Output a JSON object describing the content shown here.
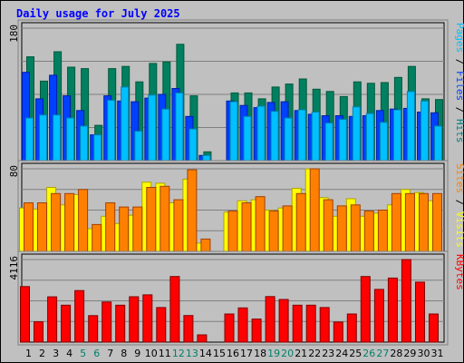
{
  "chart_data": [
    {
      "type": "bar",
      "panel": "top",
      "title": "Daily usage for July 2025",
      "ymax_label": "180",
      "ylim": [
        0,
        180
      ],
      "legend": [
        {
          "text": "Pages",
          "color": "#00c0ff"
        },
        {
          "text": " / ",
          "color": "#000000"
        },
        {
          "text": "Files",
          "color": "#0040ff"
        },
        {
          "text": " / ",
          "color": "#000000"
        },
        {
          "text": "Hits",
          "color": "#008080"
        }
      ],
      "categories": [
        "1",
        "2",
        "3",
        "4",
        "5",
        "6",
        "7",
        "8",
        "9",
        "10",
        "11",
        "12",
        "13",
        "14",
        "15",
        "16",
        "17",
        "18",
        "19",
        "20",
        "21",
        "22",
        "23",
        "24",
        "25",
        "26",
        "27",
        "28",
        "29",
        "30",
        "31"
      ],
      "series": [
        {
          "name": "Hits",
          "color": "#008060",
          "values": [
            141,
            108,
            148,
            127,
            125,
            48,
            125,
            128,
            107,
            132,
            134,
            158,
            88,
            12,
            0,
            92,
            92,
            84,
            100,
            104,
            111,
            97,
            94,
            87,
            107,
            105,
            106,
            113,
            128,
            84,
            83
          ]
        },
        {
          "name": "Files",
          "color": "#0040ff",
          "values": [
            120,
            84,
            116,
            88,
            68,
            35,
            88,
            81,
            80,
            85,
            90,
            98,
            60,
            7,
            0,
            81,
            75,
            72,
            79,
            80,
            68,
            63,
            61,
            61,
            60,
            61,
            68,
            70,
            71,
            66,
            65
          ]
        },
        {
          "name": "Pages",
          "color": "#00c0ff",
          "values": [
            58,
            62,
            62,
            58,
            47,
            35,
            82,
            100,
            40,
            89,
            70,
            92,
            43,
            7,
            0,
            80,
            60,
            74,
            67,
            58,
            69,
            66,
            51,
            56,
            73,
            64,
            52,
            69,
            94,
            81,
            47
          ]
        }
      ]
    },
    {
      "type": "bar",
      "panel": "middle",
      "ymax_label": "80",
      "ylim": [
        0,
        80
      ],
      "legend": [
        {
          "text": "Sites",
          "color": "#ff8000"
        },
        {
          "text": " / ",
          "color": "#000000"
        },
        {
          "text": "Visits",
          "color": "#ffff00"
        }
      ],
      "categories": [
        "1",
        "2",
        "3",
        "4",
        "5",
        "6",
        "7",
        "8",
        "9",
        "10",
        "11",
        "12",
        "13",
        "14",
        "15",
        "16",
        "17",
        "18",
        "19",
        "20",
        "21",
        "22",
        "23",
        "24",
        "25",
        "26",
        "27",
        "28",
        "29",
        "30",
        "31"
      ],
      "series": [
        {
          "name": "Visits",
          "color": "#ffff00",
          "values": [
            42,
            41,
            62,
            45,
            55,
            22,
            34,
            27,
            35,
            67,
            66,
            47,
            70,
            8,
            0,
            38,
            49,
            50,
            40,
            42,
            61,
            80,
            52,
            34,
            51,
            34,
            37,
            45,
            60,
            57,
            49
          ]
        },
        {
          "name": "Sites",
          "color": "#ff8000",
          "values": [
            47,
            47,
            56,
            56,
            60,
            26,
            47,
            43,
            43,
            62,
            63,
            50,
            79,
            12,
            0,
            39,
            47,
            53,
            39,
            44,
            56,
            80,
            50,
            44,
            45,
            39,
            40,
            56,
            56,
            56,
            56
          ]
        }
      ]
    },
    {
      "type": "bar",
      "panel": "bottom",
      "ymax_label": "4116",
      "ylim": [
        0,
        4116
      ],
      "legend": [
        {
          "text": "KBytes",
          "color": "#ff0000"
        }
      ],
      "categories": [
        "1",
        "2",
        "3",
        "4",
        "5",
        "6",
        "7",
        "8",
        "9",
        "10",
        "11",
        "12",
        "13",
        "14",
        "15",
        "16",
        "17",
        "18",
        "19",
        "20",
        "21",
        "22",
        "23",
        "24",
        "25",
        "26",
        "27",
        "28",
        "29",
        "30",
        "31"
      ],
      "series": [
        {
          "name": "KBytes",
          "color": "#ff0000",
          "values": [
            2770,
            1011,
            2255,
            1841,
            2570,
            1319,
            1998,
            1841,
            2261,
            2355,
            1724,
            3272,
            1324,
            360,
            0,
            1401,
            1704,
            1147,
            2269,
            2128,
            1841,
            1841,
            1724,
            1001,
            1401,
            3272,
            2629,
            3195,
            4116,
            2991,
            1401
          ]
        }
      ]
    }
  ]
}
